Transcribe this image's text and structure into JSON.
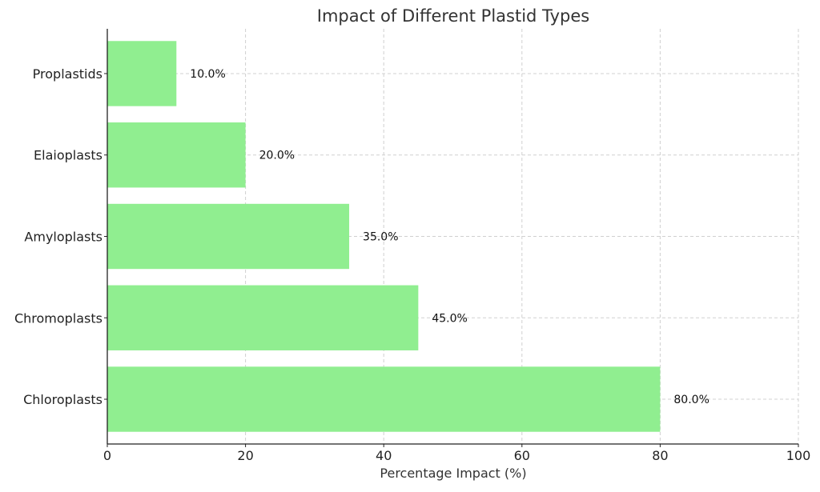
{
  "chart_data": {
    "type": "bar",
    "orientation": "horizontal",
    "title": "Impact of Different Plastid Types",
    "xlabel": "Percentage Impact (%)",
    "ylabel": "",
    "categories": [
      "Chloroplasts",
      "Chromoplasts",
      "Amyloplasts",
      "Elaioplasts",
      "Proplastids"
    ],
    "values": [
      80,
      45,
      35,
      20,
      10
    ],
    "value_labels": [
      "80.0%",
      "45.0%",
      "35.0%",
      "20.0%",
      "10.0%"
    ],
    "xlim": [
      0,
      100
    ],
    "xticks": [
      0,
      20,
      40,
      60,
      80,
      100
    ],
    "xtick_labels": [
      "0",
      "20",
      "40",
      "60",
      "80",
      "100"
    ],
    "grid": true,
    "colors": {
      "bar": "#90ee90",
      "grid": "#d0d0d0",
      "axis": "#222222"
    }
  }
}
